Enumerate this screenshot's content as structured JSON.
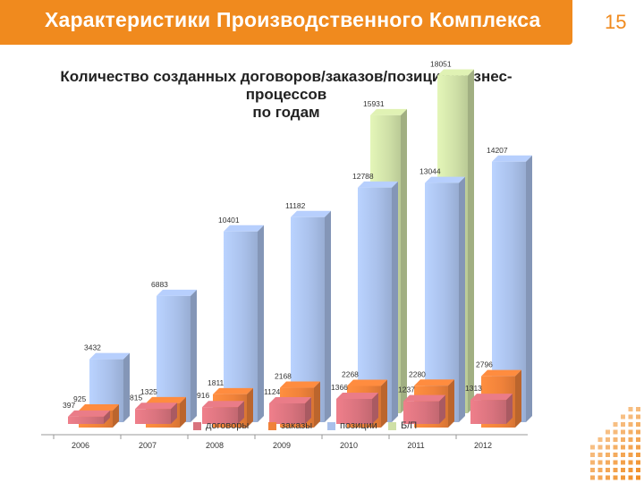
{
  "slide": {
    "title": "Характеристики Производственного Комплекса",
    "page_number": "15",
    "accent_color": "#f08a1e"
  },
  "chart_data": {
    "type": "bar",
    "title_lines": [
      "Количество созданных договоров/заказов/позиций/бизнес-",
      "процессов",
      "по годам"
    ],
    "categories": [
      "2006",
      "2007",
      "2008",
      "2009",
      "2010",
      "2011",
      "2012"
    ],
    "series": [
      {
        "name": "договоры",
        "color": "#d9737e",
        "values": [
          397,
          815,
          916,
          1124,
          1366,
          1237,
          1313
        ]
      },
      {
        "name": "заказы",
        "color": "#f0823a",
        "values": [
          925,
          1325,
          1811,
          2168,
          2268,
          2280,
          2796
        ]
      },
      {
        "name": "позиции",
        "color": "#a9c0ea",
        "values": [
          3432,
          6883,
          10401,
          11182,
          12788,
          13044,
          14207
        ]
      },
      {
        "name": "Б/П",
        "color": "#cfe0a7",
        "values": [
          null,
          null,
          null,
          null,
          15931,
          18051,
          null
        ]
      }
    ],
    "legend_position": "bottom",
    "grid": false,
    "ylim": [
      0,
      22000
    ]
  }
}
